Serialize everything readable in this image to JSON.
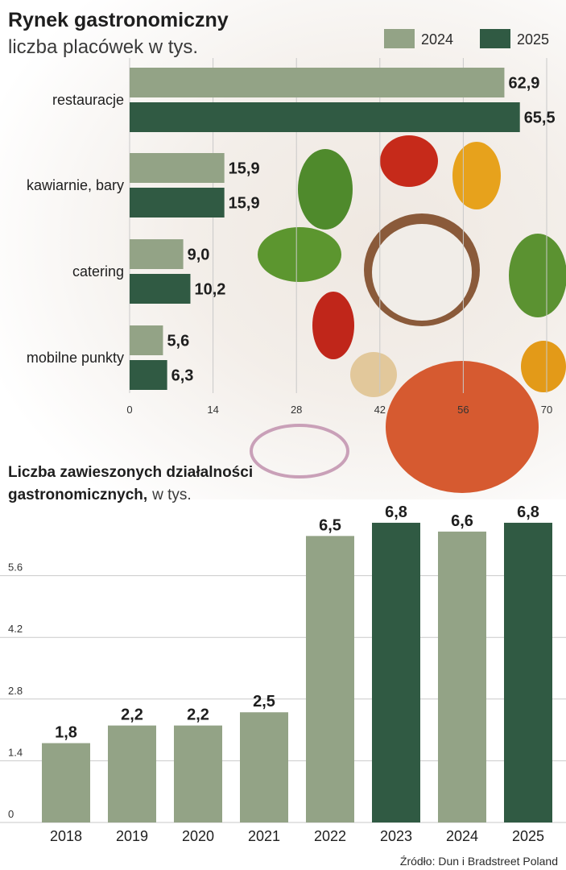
{
  "colors": {
    "c2024": "#93a386",
    "c2025": "#305a43",
    "light": "#93a386",
    "dark": "#305a43",
    "grid": "#c9c9c9"
  },
  "legend": [
    {
      "label": "2024",
      "color": "#93a386"
    },
    {
      "label": "2025",
      "color": "#305a43"
    }
  ],
  "source": "Źródło: Dun i Bradstreet Poland",
  "chart_data": [
    {
      "type": "bar",
      "orientation": "horizontal",
      "title": "Rynek gastronomiczny",
      "subtitle": "liczba placówek w tys.",
      "categories": [
        "restauracje",
        "kawiarnie, bary",
        "catering",
        "mobilne punkty"
      ],
      "series": [
        {
          "name": "2024",
          "values": [
            62.9,
            15.9,
            9.0,
            5.6
          ],
          "labels": [
            "62,9",
            "15,9",
            "9,0",
            "5,6"
          ]
        },
        {
          "name": "2025",
          "values": [
            65.5,
            15.9,
            10.2,
            6.3
          ],
          "labels": [
            "65,5",
            "15,9",
            "10,2",
            "6,3"
          ]
        }
      ],
      "xlim": [
        0,
        70
      ],
      "xticks": [
        "0",
        "14",
        "28",
        "42",
        "56",
        "70"
      ],
      "grid": true,
      "legend_position": "top-right"
    },
    {
      "type": "bar",
      "title": "Liczba zawieszonych działalności gastronomicznych,",
      "title_suffix": "w tys.",
      "categories": [
        "2018",
        "2019",
        "2020",
        "2021",
        "2022",
        "2023",
        "2024",
        "2025"
      ],
      "values": [
        1.8,
        2.2,
        2.2,
        2.5,
        6.5,
        6.8,
        6.6,
        6.8
      ],
      "labels": [
        "1,8",
        "2,2",
        "2,2",
        "2,5",
        "6,5",
        "6,8",
        "6,6",
        "6,8"
      ],
      "highlight": [
        false,
        false,
        false,
        false,
        false,
        true,
        false,
        true
      ],
      "ylim": [
        0,
        7
      ],
      "yticks": [
        "0",
        "1.4",
        "2.8",
        "4.2",
        "5.6"
      ],
      "grid": true
    }
  ]
}
